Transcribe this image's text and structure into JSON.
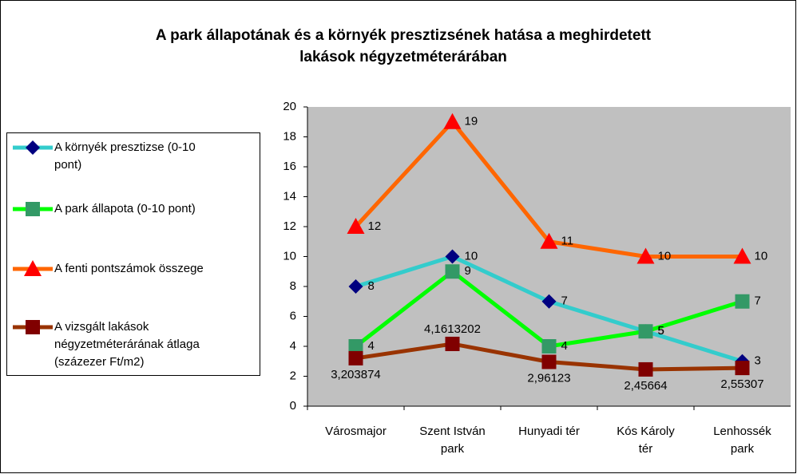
{
  "chart_data": {
    "type": "line",
    "title": "A park állapotának és a környék presztizsének hatása a meghirdetett lakások négyzetméterárában",
    "categories": [
      "Városmajor",
      "Szent István park",
      "Hunyadi tér",
      "Kós Károly tér",
      "Lenhossék park"
    ],
    "ylim": [
      0,
      20
    ],
    "yticks": [
      0,
      2,
      4,
      6,
      8,
      10,
      12,
      14,
      16,
      18,
      20
    ],
    "grid": false,
    "plot_background": "#c0c0c0",
    "legend": "left",
    "series": [
      {
        "name": "A környék presztizse (0-10 pont)",
        "color": "#33cccc",
        "marker": "diamond",
        "marker_color": "#000080",
        "values": [
          8,
          10,
          7,
          5,
          3
        ]
      },
      {
        "name": "A park állapota (0-10 pont)",
        "color": "#00ff00",
        "marker": "square",
        "marker_color": "#339966",
        "values": [
          4,
          9,
          4,
          5,
          7
        ]
      },
      {
        "name": "A fenti pontszámok összege",
        "color": "#ff6600",
        "marker": "triangle",
        "marker_color": "#ff0000",
        "values": [
          12,
          19,
          11,
          10,
          10
        ]
      },
      {
        "name": "A vizsgált lakások négyzetméterárának átlaga (százezer Ft/m2)",
        "color": "#993300",
        "marker": "square",
        "marker_color": "#800000",
        "values": [
          3.203874,
          4.1613202,
          2.96123,
          2.45664,
          2.55307
        ],
        "value_labels": [
          "3,203874",
          "4,1613202",
          "2,96123",
          "2,45664",
          "2,55307"
        ]
      }
    ]
  }
}
